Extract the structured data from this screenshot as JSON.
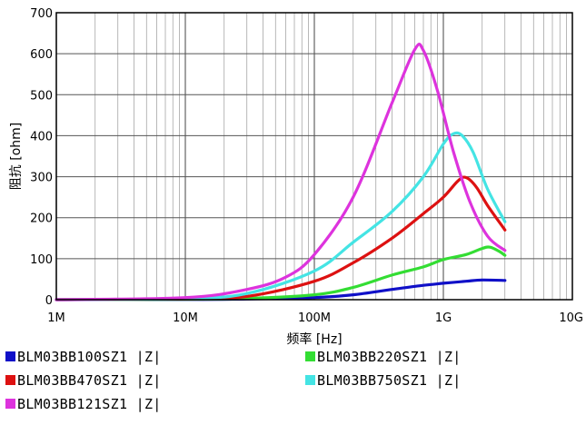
{
  "chart_data": {
    "type": "line",
    "xlabel": "频率 [Hz]",
    "ylabel": "阻抗 [ohm]",
    "x_scale": "log",
    "xlim_hz": [
      1000000,
      10000000000
    ],
    "ylim": [
      0,
      700
    ],
    "x_tick_labels": [
      "1M",
      "10M",
      "100M",
      "1G",
      "10G"
    ],
    "y_tick_labels": [
      "0",
      "100",
      "200",
      "300",
      "400",
      "500",
      "600",
      "700"
    ],
    "grid": true,
    "legend_position": "bottom",
    "series": [
      {
        "name": "BLM03BB100SZ1 |Z|",
        "color": "#1010c8",
        "points": [
          [
            1000000,
            0
          ],
          [
            10000000,
            0.5
          ],
          [
            30000000,
            1.5
          ],
          [
            100000000,
            5
          ],
          [
            200000000,
            12
          ],
          [
            400000000,
            25
          ],
          [
            700000000,
            35
          ],
          [
            1000000000,
            40
          ],
          [
            1500000000,
            45
          ],
          [
            2000000000,
            48
          ],
          [
            3000000000,
            47
          ]
        ]
      },
      {
        "name": "BLM03BB220SZ1 |Z|",
        "color": "#33dd33",
        "points": [
          [
            1000000,
            0
          ],
          [
            10000000,
            1
          ],
          [
            30000000,
            3
          ],
          [
            100000000,
            12
          ],
          [
            200000000,
            30
          ],
          [
            400000000,
            60
          ],
          [
            700000000,
            80
          ],
          [
            1000000000,
            98
          ],
          [
            1500000000,
            110
          ],
          [
            2000000000,
            125
          ],
          [
            2300000000,
            128
          ],
          [
            2700000000,
            118
          ],
          [
            3000000000,
            108
          ]
        ]
      },
      {
        "name": "BLM03BB470SZ1 |Z|",
        "color": "#dd1111",
        "points": [
          [
            1000000,
            0
          ],
          [
            10000000,
            2
          ],
          [
            30000000,
            8
          ],
          [
            100000000,
            45
          ],
          [
            200000000,
            90
          ],
          [
            400000000,
            150
          ],
          [
            700000000,
            210
          ],
          [
            1000000000,
            250
          ],
          [
            1300000000,
            290
          ],
          [
            1500000000,
            298
          ],
          [
            1800000000,
            275
          ],
          [
            2200000000,
            230
          ],
          [
            3000000000,
            170
          ]
        ]
      },
      {
        "name": "BLM03BB750SZ1 |Z|",
        "color": "#44e4e4",
        "points": [
          [
            1000000,
            0
          ],
          [
            10000000,
            3
          ],
          [
            30000000,
            15
          ],
          [
            100000000,
            70
          ],
          [
            200000000,
            140
          ],
          [
            400000000,
            215
          ],
          [
            700000000,
            300
          ],
          [
            1000000000,
            380
          ],
          [
            1200000000,
            405
          ],
          [
            1400000000,
            400
          ],
          [
            1700000000,
            360
          ],
          [
            2200000000,
            270
          ],
          [
            3000000000,
            190
          ]
        ]
      },
      {
        "name": "BLM03BB121SZ1 |Z|",
        "color": "#dd33dd",
        "points": [
          [
            1000000,
            0
          ],
          [
            10000000,
            5
          ],
          [
            30000000,
            25
          ],
          [
            60000000,
            55
          ],
          [
            100000000,
            110
          ],
          [
            200000000,
            250
          ],
          [
            400000000,
            480
          ],
          [
            600000000,
            610
          ],
          [
            700000000,
            608
          ],
          [
            900000000,
            510
          ],
          [
            1200000000,
            360
          ],
          [
            1600000000,
            240
          ],
          [
            2200000000,
            155
          ],
          [
            3000000000,
            120
          ]
        ]
      }
    ]
  }
}
